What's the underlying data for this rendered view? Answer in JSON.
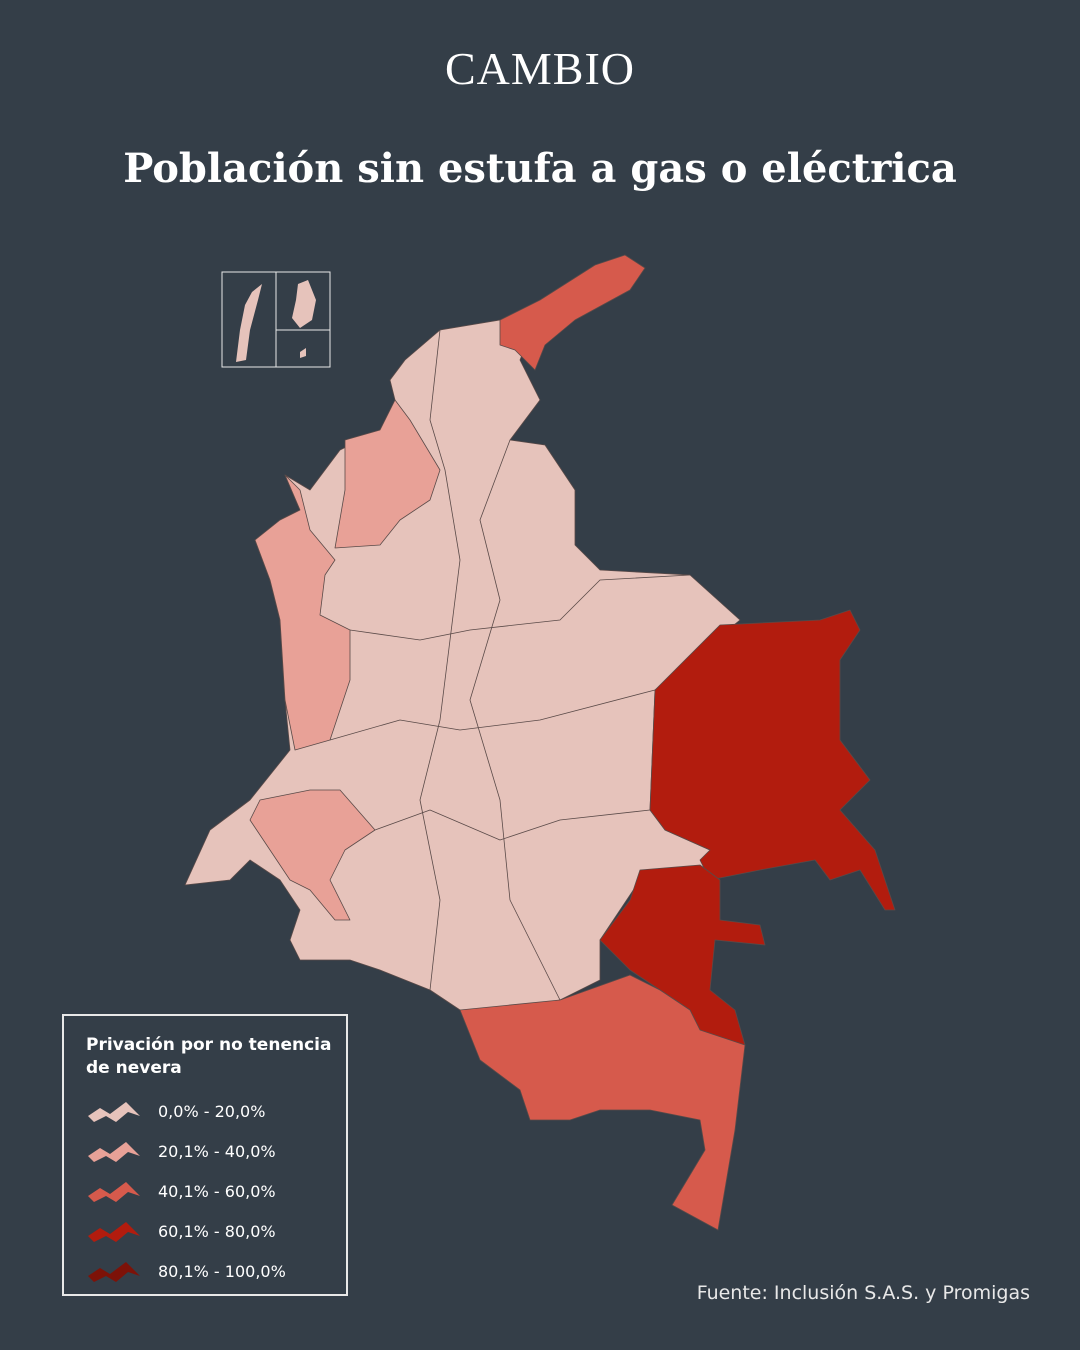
{
  "header": {
    "logo": "CAMBIO",
    "title": "Población sin estufa a gas o eléctrica"
  },
  "legend": {
    "title": "Privación por no tenencia de nevera",
    "items": [
      {
        "label": "0,0% - 20,0%",
        "color": "#e6c3bb"
      },
      {
        "label": "20,1% - 40,0%",
        "color": "#e8a197"
      },
      {
        "label": "40,1% - 60,0%",
        "color": "#d65a4c"
      },
      {
        "label": "60,1% - 80,0%",
        "color": "#b21c0e"
      },
      {
        "label": "80,1% - 100,0%",
        "color": "#7d1208"
      }
    ]
  },
  "source": "Fuente: Inclusión S.A.S. y Promigas"
}
